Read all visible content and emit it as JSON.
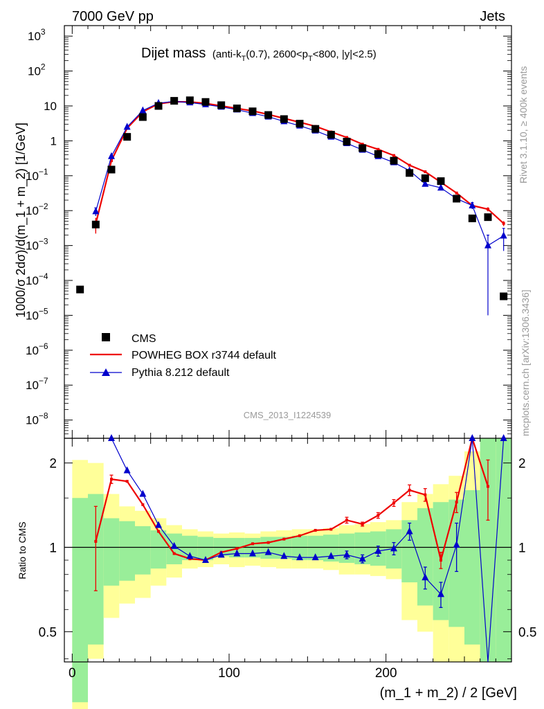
{
  "header": {
    "left": "7000 GeV pp",
    "right": "Jets"
  },
  "side_labels": {
    "rivet": "Rivet 3.1.10, ≥ 400k events",
    "mcplots": "mcplots.cern.ch [arXiv:1306.3436]"
  },
  "analysis_id": "CMS_2013_I1224539",
  "title": {
    "main": "Dijet mass",
    "detail_parts": [
      "(anti-k",
      "T",
      "(0.7), 2600<p",
      "T",
      "<800, |y|<2.5)"
    ]
  },
  "legend": {
    "entries": [
      {
        "label": "CMS",
        "color": "#000000",
        "marker": "square"
      },
      {
        "label": "POWHEG BOX r3744 default",
        "color": "#ee0000",
        "marker": "line"
      },
      {
        "label": "Pythia 8.212 default",
        "color": "#0000cc",
        "marker": "triangle"
      }
    ]
  },
  "chart_data": {
    "type": "scatter",
    "main_panel": {
      "ylabel": "1000/σ 2dσ)/d(m_1 + m_2) [1/GeV]",
      "yscale": "log",
      "ylim": [
        3e-09,
        2000
      ],
      "yticks": [
        {
          "v": 1000,
          "mant": "10",
          "exp": "3"
        },
        {
          "v": 100,
          "mant": "10",
          "exp": "2"
        },
        {
          "v": 10,
          "mant": "10",
          "exp": ""
        },
        {
          "v": 1,
          "mant": "1",
          "exp": ""
        },
        {
          "v": 0.1,
          "mant": "10",
          "exp": "−1"
        },
        {
          "v": 0.01,
          "mant": "10",
          "exp": "−2"
        },
        {
          "v": 0.001,
          "mant": "10",
          "exp": "−3"
        },
        {
          "v": 0.0001,
          "mant": "10",
          "exp": "−4"
        },
        {
          "v": 1e-05,
          "mant": "10",
          "exp": "−5"
        },
        {
          "v": 1e-06,
          "mant": "10",
          "exp": "−6"
        },
        {
          "v": 1e-07,
          "mant": "10",
          "exp": "−7"
        },
        {
          "v": 1e-08,
          "mant": "10",
          "exp": "−8"
        }
      ]
    },
    "x": [
      5,
      15,
      25,
      35,
      45,
      55,
      65,
      75,
      85,
      95,
      105,
      115,
      125,
      135,
      145,
      155,
      165,
      175,
      185,
      195,
      205,
      215,
      225,
      235,
      245,
      255,
      265,
      275
    ],
    "xlim": [
      -5,
      280
    ],
    "xticks": [
      0,
      100,
      200
    ],
    "xlabel": "(m_1 + m_2) / 2 [GeV]",
    "series": [
      {
        "name": "CMS",
        "color": "#000000",
        "values": [
          5.5e-05,
          0.004,
          0.15,
          1.3,
          4.8,
          10,
          14,
          14.5,
          13,
          10.5,
          8.5,
          7,
          5.5,
          4.2,
          3.1,
          2.2,
          1.5,
          0.95,
          0.62,
          0.42,
          0.27,
          0.12,
          0.085,
          0.07,
          0.022,
          0.006,
          0.0065,
          3.5e-05
        ]
      },
      {
        "name": "POWHEG BOX r3744 default",
        "color": "#ee0000",
        "values": [
          null,
          0.0042,
          0.27,
          2.3,
          6.8,
          11.5,
          13.2,
          13,
          11.8,
          10,
          8.5,
          7.2,
          5.7,
          4.4,
          3.4,
          2.6,
          1.8,
          1.25,
          0.8,
          0.57,
          0.38,
          0.2,
          0.13,
          0.065,
          0.032,
          0.014,
          0.011,
          0.0043
        ],
        "errors": [
          null,
          0.002,
          null,
          null,
          null,
          null,
          null,
          null,
          null,
          null,
          null,
          null,
          null,
          null,
          null,
          null,
          null,
          null,
          null,
          null,
          null,
          null,
          null,
          null,
          null,
          null,
          0.0015,
          0.0007
        ]
      },
      {
        "name": "Pythia 8.212 default",
        "color": "#0000cc",
        "values": [
          null,
          0.0095,
          0.36,
          2.5,
          7.4,
          12,
          13.5,
          12.5,
          11,
          9.4,
          7.8,
          6.2,
          4.9,
          3.6,
          2.7,
          1.95,
          1.3,
          0.85,
          0.55,
          0.36,
          0.24,
          0.14,
          0.058,
          0.045,
          0.022,
          0.014,
          0.001,
          0.0019
        ],
        "errors": [
          null,
          0.0025,
          null,
          null,
          null,
          null,
          null,
          null,
          null,
          null,
          null,
          null,
          null,
          null,
          null,
          null,
          null,
          null,
          null,
          null,
          null,
          null,
          null,
          null,
          null,
          0.003,
          0.00099,
          0.0012
        ]
      }
    ],
    "ratio_panel": {
      "ylabel": "Ratio to CMS",
      "yscale": "log",
      "ylim": [
        0.39,
        2.45
      ],
      "yticks": [
        0.5,
        1,
        2
      ],
      "bands": [
        {
          "x0": 0,
          "x1": 10,
          "inner": [
            0.28,
            1.5
          ],
          "outer": [
            0.23,
            2.05
          ]
        },
        {
          "x0": 10,
          "x1": 20,
          "inner": [
            0.45,
            1.55
          ],
          "outer": [
            0.4,
            2.0
          ]
        },
        {
          "x0": 20,
          "x1": 30,
          "inner": [
            0.73,
            1.27
          ],
          "outer": [
            0.56,
            1.55
          ]
        },
        {
          "x0": 30,
          "x1": 40,
          "inner": [
            0.76,
            1.24
          ],
          "outer": [
            0.63,
            1.4
          ]
        },
        {
          "x0": 40,
          "x1": 50,
          "inner": [
            0.8,
            1.19
          ],
          "outer": [
            0.66,
            1.35
          ]
        },
        {
          "x0": 50,
          "x1": 60,
          "inner": [
            0.84,
            1.15
          ],
          "outer": [
            0.73,
            1.27
          ]
        },
        {
          "x0": 60,
          "x1": 70,
          "inner": [
            0.87,
            1.12
          ],
          "outer": [
            0.78,
            1.2
          ]
        },
        {
          "x0": 70,
          "x1": 80,
          "inner": [
            0.9,
            1.1
          ],
          "outer": [
            0.84,
            1.16
          ]
        },
        {
          "x0": 80,
          "x1": 90,
          "inner": [
            0.9,
            1.09
          ],
          "outer": [
            0.85,
            1.14
          ]
        },
        {
          "x0": 90,
          "x1": 100,
          "inner": [
            0.93,
            1.08
          ],
          "outer": [
            0.87,
            1.12
          ]
        },
        {
          "x0": 100,
          "x1": 110,
          "inner": [
            0.92,
            1.08
          ],
          "outer": [
            0.85,
            1.13
          ]
        },
        {
          "x0": 110,
          "x1": 120,
          "inner": [
            0.92,
            1.08
          ],
          "outer": [
            0.86,
            1.12
          ]
        },
        {
          "x0": 120,
          "x1": 130,
          "inner": [
            0.91,
            1.09
          ],
          "outer": [
            0.85,
            1.14
          ]
        },
        {
          "x0": 130,
          "x1": 140,
          "inner": [
            0.91,
            1.09
          ],
          "outer": [
            0.84,
            1.15
          ]
        },
        {
          "x0": 140,
          "x1": 150,
          "inner": [
            0.9,
            1.1
          ],
          "outer": [
            0.84,
            1.16
          ]
        },
        {
          "x0": 150,
          "x1": 160,
          "inner": [
            0.9,
            1.1
          ],
          "outer": [
            0.84,
            1.16
          ]
        },
        {
          "x0": 160,
          "x1": 170,
          "inner": [
            0.89,
            1.11
          ],
          "outer": [
            0.83,
            1.17
          ]
        },
        {
          "x0": 170,
          "x1": 180,
          "inner": [
            0.88,
            1.12
          ],
          "outer": [
            0.8,
            1.2
          ]
        },
        {
          "x0": 180,
          "x1": 190,
          "inner": [
            0.87,
            1.13
          ],
          "outer": [
            0.8,
            1.21
          ]
        },
        {
          "x0": 190,
          "x1": 200,
          "inner": [
            0.86,
            1.14
          ],
          "outer": [
            0.79,
            1.23
          ]
        },
        {
          "x0": 200,
          "x1": 210,
          "inner": [
            0.84,
            1.16
          ],
          "outer": [
            0.77,
            1.25
          ]
        },
        {
          "x0": 210,
          "x1": 220,
          "inner": [
            0.75,
            1.25
          ],
          "outer": [
            0.55,
            1.45
          ]
        },
        {
          "x0": 220,
          "x1": 230,
          "inner": [
            0.62,
            1.38
          ],
          "outer": [
            0.5,
            1.55
          ]
        },
        {
          "x0": 230,
          "x1": 240,
          "inner": [
            0.55,
            1.45
          ],
          "outer": [
            0.39,
            1.68
          ]
        },
        {
          "x0": 240,
          "x1": 250,
          "inner": [
            0.52,
            1.48
          ],
          "outer": [
            0.39,
            1.8
          ]
        },
        {
          "x0": 250,
          "x1": 260,
          "inner": [
            0.45,
            1.6
          ],
          "outer": [
            0.39,
            2.2
          ]
        },
        {
          "x0": 260,
          "x1": 270,
          "inner": [
            0.39,
            2.45
          ],
          "outer": [
            0.39,
            2.45
          ]
        },
        {
          "x0": 270,
          "x1": 280,
          "inner": [
            0.39,
            2.45
          ],
          "outer": [
            0.39,
            2.45
          ]
        }
      ],
      "series": [
        {
          "name": "POWHEG BOX r3744 default",
          "color": "#ee0000",
          "values": [
            null,
            1.05,
            1.75,
            1.72,
            1.42,
            1.14,
            0.95,
            0.91,
            0.9,
            0.96,
            0.99,
            1.03,
            1.04,
            1.07,
            1.1,
            1.15,
            1.16,
            1.25,
            1.21,
            1.3,
            1.44,
            1.6,
            1.54,
            0.9,
            1.45,
            2.45,
            1.65,
            null
          ],
          "errors": [
            null,
            0.35,
            0.06,
            null,
            null,
            null,
            null,
            null,
            null,
            null,
            null,
            null,
            null,
            null,
            null,
            null,
            null,
            0.03,
            0.02,
            0.03,
            0.04,
            0.07,
            0.08,
            0.06,
            0.12,
            null,
            0.4,
            null
          ]
        },
        {
          "name": "Pythia 8.212 default",
          "color": "#0000cc",
          "values": [
            null,
            null,
            2.45,
            1.88,
            1.55,
            1.2,
            1.01,
            0.93,
            0.9,
            0.94,
            0.95,
            0.95,
            0.96,
            0.93,
            0.92,
            0.92,
            0.93,
            0.94,
            0.91,
            0.97,
            0.99,
            1.14,
            0.78,
            0.68,
            1.02,
            2.45,
            0.15,
            2.45
          ],
          "errors": [
            null,
            null,
            null,
            null,
            null,
            null,
            null,
            null,
            null,
            null,
            null,
            null,
            null,
            null,
            null,
            null,
            null,
            0.03,
            0.03,
            0.04,
            0.05,
            0.08,
            0.07,
            0.07,
            0.2,
            null,
            null,
            null
          ]
        }
      ]
    }
  }
}
